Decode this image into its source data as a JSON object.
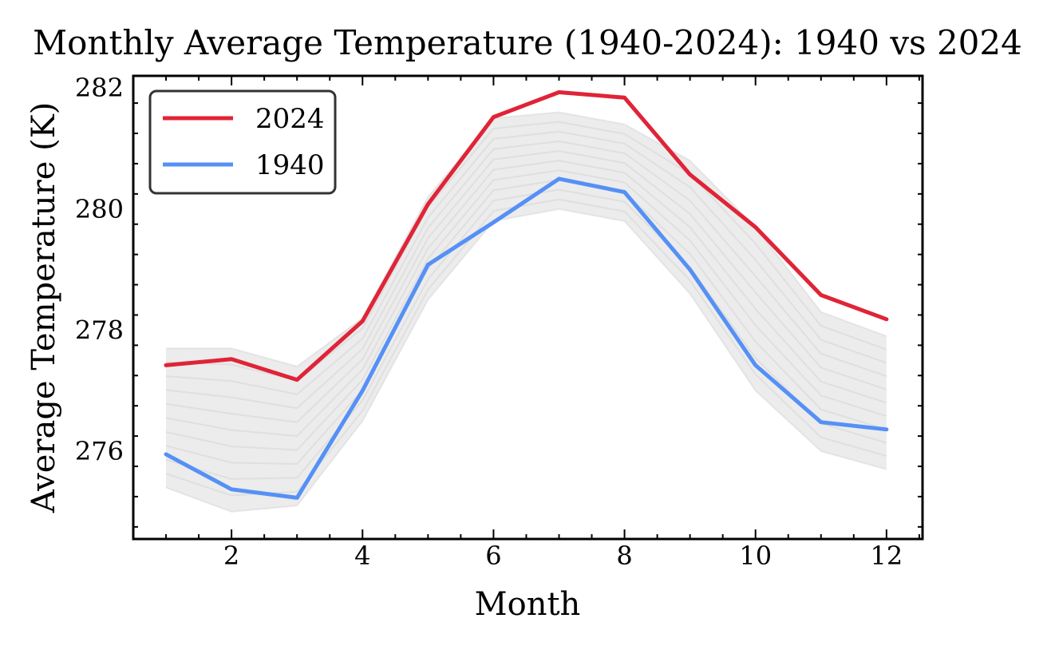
{
  "chart_data": {
    "type": "line",
    "title": "Monthly Average Temperature (1940-2024): 1940 vs 2024",
    "xlabel": "Month",
    "ylabel": "Average Temperature (K)",
    "xlim": [
      0.5,
      12.55
    ],
    "ylim": [
      274.55,
      282.2
    ],
    "x_ticks": [
      2,
      4,
      6,
      8,
      10,
      12
    ],
    "y_ticks": [
      276,
      278,
      280,
      282
    ],
    "x": [
      1,
      2,
      3,
      4,
      5,
      6,
      7,
      8,
      9,
      10,
      11,
      12
    ],
    "series": [
      {
        "name": "2024",
        "color": "#e02437",
        "values": [
          277.42,
          277.52,
          277.18,
          278.15,
          280.08,
          281.52,
          281.93,
          281.84,
          280.57,
          279.7,
          278.58,
          278.18
        ]
      },
      {
        "name": "1940",
        "color": "#5590f6",
        "values": [
          275.95,
          275.37,
          275.23,
          277.0,
          279.08,
          279.78,
          280.5,
          280.28,
          279.0,
          277.42,
          276.48,
          276.36
        ]
      }
    ],
    "background_band": {
      "color": "#c8c8c8",
      "low": [
        275.4,
        275.0,
        275.1,
        276.5,
        278.5,
        279.8,
        280.0,
        279.8,
        278.6,
        277.0,
        276.0,
        275.7
      ],
      "high": [
        277.7,
        277.7,
        277.4,
        278.2,
        280.2,
        281.5,
        281.6,
        281.4,
        280.8,
        279.7,
        278.3,
        277.9
      ]
    },
    "legend": {
      "position": "top-left"
    },
    "grid": false
  }
}
